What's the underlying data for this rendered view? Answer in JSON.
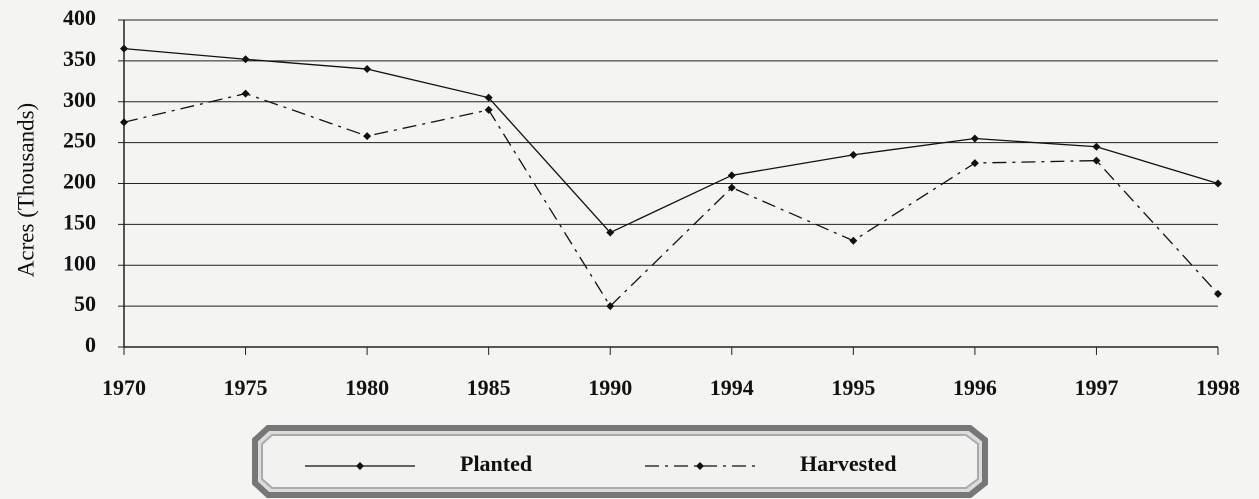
{
  "chart_data": {
    "type": "line",
    "y_label": "Acres (Thousands)",
    "categories": [
      "1970",
      "1975",
      "1980",
      "1985",
      "1990",
      "1994",
      "1995",
      "1996",
      "1997",
      "1998"
    ],
    "series": [
      {
        "name": "Planted",
        "color": "#111111",
        "dash": "solid",
        "values": [
          365,
          352,
          340,
          305,
          140,
          210,
          235,
          255,
          245,
          200
        ]
      },
      {
        "name": "Harvested",
        "color": "#111111",
        "dash": "dashdot",
        "values": [
          275,
          310,
          258,
          290,
          50,
          195,
          130,
          225,
          228,
          65
        ]
      }
    ],
    "ylim": [
      0,
      400
    ],
    "yticks": [
      0,
      50,
      100,
      150,
      200,
      250,
      300,
      350,
      400
    ],
    "grid": true,
    "legend": "bottom"
  }
}
